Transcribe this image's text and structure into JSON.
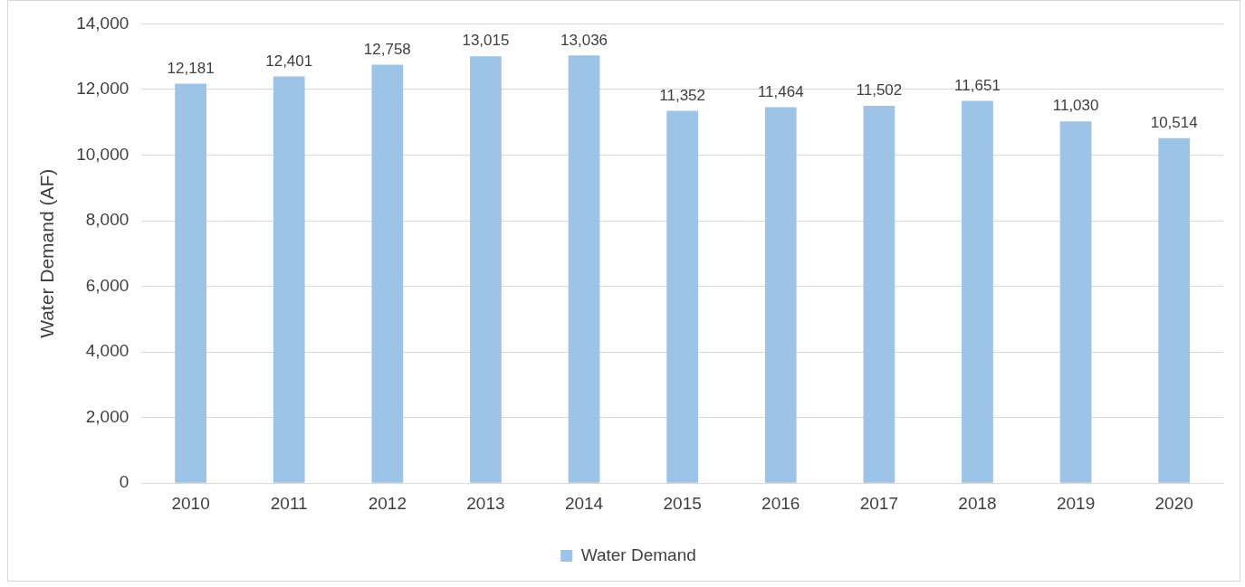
{
  "chart_data": {
    "type": "bar",
    "ylabel": "Water Demand (AF)",
    "categories": [
      "2010",
      "2011",
      "2012",
      "2013",
      "2014",
      "2015",
      "2016",
      "2017",
      "2018",
      "2019",
      "2020"
    ],
    "series": [
      {
        "name": "Water Demand",
        "color": "#9dc3e6",
        "values": [
          12181,
          12401,
          12758,
          13015,
          13036,
          11352,
          11464,
          11502,
          11651,
          11030,
          10514
        ],
        "value_labels": [
          "12,181",
          "12,401",
          "12,758",
          "13,015",
          "13,036",
          "11,352",
          "11,464",
          "11,502",
          "11,651",
          "11,030",
          "10,514"
        ]
      }
    ],
    "ylim": [
      0,
      14000
    ],
    "yticks": [
      {
        "value": 0,
        "label": "0"
      },
      {
        "value": 2000,
        "label": "2,000"
      },
      {
        "value": 4000,
        "label": "4,000"
      },
      {
        "value": 6000,
        "label": "6,000"
      },
      {
        "value": 8000,
        "label": "8,000"
      },
      {
        "value": 10000,
        "label": "10,000"
      },
      {
        "value": 12000,
        "label": "12,000"
      },
      {
        "value": 14000,
        "label": "14,000"
      }
    ],
    "grid": "y",
    "legend": "bottom"
  }
}
